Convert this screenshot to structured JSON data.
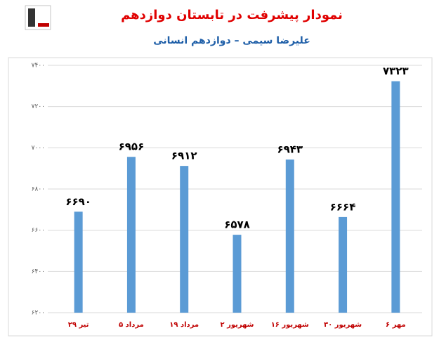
{
  "chart_data": {
    "type": "bar",
    "title": "نمودار پیشرفت در تابستان دوازدهم",
    "subtitle": "علیرضا سیمی – دوازدهم انسانی",
    "categories": [
      "۲۹ تیر",
      "۵ مرداد",
      "۱۹ مرداد",
      "۲ شهریور",
      "۱۶ شهریور",
      "۳۰ شهریور",
      "۶ مهر"
    ],
    "values": [
      6690,
      6956,
      6912,
      6578,
      6943,
      6664,
      7323
    ],
    "value_labels": [
      "۶۶۹۰",
      "۶۹۵۶",
      "۶۹۱۲",
      "۶۵۷۸",
      "۶۹۴۳",
      "۶۶۶۴",
      "۷۳۲۳"
    ],
    "color": "#5b9bd5",
    "ylim": [
      6200,
      7400
    ],
    "yticks": [
      {
        "value": 6200,
        "label": "۶۲۰۰"
      },
      {
        "value": 6400,
        "label": "۶۴۰۰"
      },
      {
        "value": 6600,
        "label": "۶۶۰۰"
      },
      {
        "value": 6800,
        "label": "۶۸۰۰"
      },
      {
        "value": 7000,
        "label": "۷۰۰۰"
      },
      {
        "value": 7200,
        "label": "۷۲۰۰"
      },
      {
        "value": 7400,
        "label": "۷۴۰۰"
      }
    ],
    "grid": true
  }
}
